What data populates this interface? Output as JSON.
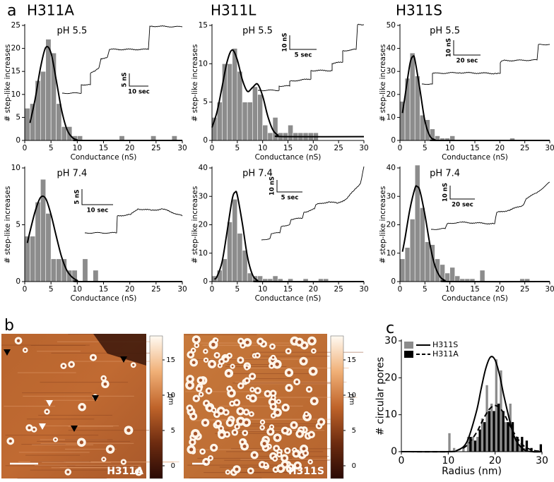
{
  "panel_labels": [
    "a",
    "b",
    "c"
  ],
  "column_titles": [
    "H311A",
    "H311L",
    "H311S"
  ],
  "chart_data": [
    {
      "type": "histogram",
      "annotation": "pH 5.5",
      "xlabel": "Conductance (nS)",
      "ylabel": "# step-like increases",
      "color": "#8c8c8c",
      "bins": [
        0,
        1,
        2,
        3,
        4,
        5,
        6,
        7,
        8,
        9,
        10,
        11,
        12,
        13,
        14,
        15,
        16,
        17,
        18,
        19,
        20,
        21,
        22,
        23,
        24,
        25,
        26,
        27,
        28,
        29,
        30
      ],
      "values": [
        7,
        8,
        13,
        15,
        22,
        19,
        8,
        3,
        3,
        1,
        1,
        0,
        0,
        0,
        0,
        0,
        0,
        0,
        1,
        0,
        0,
        0,
        0,
        0,
        1,
        0,
        0,
        0,
        1,
        0
      ],
      "xlim": [
        0,
        30
      ],
      "xticks": [
        0,
        5,
        10,
        15,
        20,
        25,
        30
      ],
      "ylim": [
        0,
        25
      ],
      "yticks": [
        0,
        5,
        10,
        15,
        20,
        25
      ],
      "fit": {
        "color": "#000000",
        "x": [
          1,
          2,
          3,
          4,
          5,
          6,
          7,
          8,
          9,
          10,
          11,
          30
        ],
        "values": [
          3.8,
          9.1,
          15.8,
          20.2,
          19.0,
          13.1,
          6.7,
          2.5,
          0.7,
          0.1,
          0,
          0
        ]
      },
      "inset": {
        "scale_y": "5 nS",
        "scale_x": "10 sec"
      }
    },
    {
      "type": "histogram",
      "annotation": "pH 5.5",
      "xlabel": "Conductance (nS)",
      "ylabel": "# step-like increases",
      "color": "#8c8c8c",
      "bins": [
        0,
        1,
        2,
        3,
        4,
        5,
        6,
        7,
        8,
        9,
        10,
        11,
        12,
        13,
        14,
        15,
        16,
        17,
        18,
        19,
        20,
        21,
        22,
        23,
        24,
        25,
        26,
        27,
        28,
        29,
        30
      ],
      "values": [
        3,
        5,
        10,
        10,
        12,
        9,
        5,
        5,
        7,
        6,
        2,
        1,
        3,
        1,
        1,
        2,
        1,
        1,
        1,
        1,
        1,
        0,
        0,
        0,
        0,
        0,
        0,
        0,
        0,
        0
      ],
      "xlim": [
        0,
        30
      ],
      "xticks": [
        0,
        5,
        10,
        15,
        20,
        25,
        30
      ],
      "ylim": [
        0,
        15
      ],
      "yticks": [
        0,
        5,
        10,
        15
      ],
      "fit": {
        "color": "#000000",
        "x": [
          0,
          1,
          2,
          3,
          4,
          5,
          6,
          7,
          8,
          9,
          10,
          11,
          12,
          13,
          14,
          30
        ],
        "values": [
          1.7,
          3.75,
          7.0,
          10.3,
          11.8,
          10.5,
          7.9,
          6.4,
          6.9,
          7.35,
          5.8,
          3.2,
          1.4,
          0.7,
          0.5,
          0.5
        ]
      },
      "inset": {
        "scale_y": "10 nS",
        "scale_x": "5 sec"
      }
    },
    {
      "type": "histogram",
      "annotation": "pH 5.5",
      "xlabel": "Conductance (nS)",
      "ylabel": "# step-like increases",
      "color": "#8c8c8c",
      "bins": [
        0,
        1,
        2,
        3,
        4,
        5,
        6,
        7,
        8,
        9,
        10,
        11,
        12,
        13,
        14,
        15,
        16,
        17,
        18,
        19,
        20,
        21,
        22,
        23,
        24,
        25,
        26,
        27,
        28,
        29,
        30
      ],
      "values": [
        17,
        27,
        38,
        28,
        11,
        9,
        5,
        2,
        1,
        1,
        2,
        0,
        0,
        0,
        0,
        0,
        0,
        0,
        0,
        0,
        0,
        0,
        1,
        0,
        0,
        0,
        0,
        0,
        0,
        0
      ],
      "xlim": [
        0,
        30
      ],
      "xticks": [
        0,
        5,
        10,
        15,
        20,
        25,
        30
      ],
      "ylim": [
        0,
        50
      ],
      "yticks": [
        0,
        10,
        20,
        30,
        40,
        50
      ],
      "fit": {
        "color": "#000000",
        "x": [
          0.5,
          1,
          2,
          2.6,
          3,
          4,
          5,
          6,
          7,
          8,
          30
        ],
        "values": [
          11.9,
          19.0,
          33.3,
          36.5,
          35.0,
          22.1,
          8.4,
          1.9,
          0.3,
          0,
          0
        ]
      },
      "inset": {
        "scale_y": "10 nS",
        "scale_x": "20 sec"
      }
    },
    {
      "type": "histogram",
      "annotation": "pH 7.4",
      "xlabel": "Conductance (nS)",
      "ylabel": "# step-like increases",
      "color": "#8c8c8c",
      "bins": [
        0,
        1,
        2,
        3,
        4,
        5,
        6,
        7,
        8,
        9,
        10,
        11,
        12,
        13,
        14,
        15,
        16,
        17,
        18,
        19,
        20,
        21,
        22,
        23,
        24,
        25,
        26,
        27,
        28,
        29,
        30
      ],
      "values": [
        4,
        4,
        7,
        9,
        6,
        2,
        2,
        2,
        1,
        1,
        0,
        2,
        0,
        1,
        0,
        0,
        0,
        0,
        0,
        0,
        0,
        0,
        0,
        0,
        0,
        0,
        0,
        0,
        0,
        0
      ],
      "xlim": [
        0,
        30
      ],
      "xticks": [
        0,
        5,
        10,
        15,
        20,
        25,
        30
      ],
      "ylim": [
        0,
        10
      ],
      "yticks": [
        0,
        5,
        10
      ],
      "fit": {
        "color": "#000000",
        "x": [
          0.5,
          1,
          2,
          3,
          4,
          5,
          6,
          7,
          8,
          9,
          10,
          11,
          30
        ],
        "values": [
          3.4,
          4.4,
          6.2,
          7.4,
          7.3,
          5.9,
          4.0,
          2.2,
          1.0,
          0.4,
          0.1,
          0,
          0
        ]
      },
      "inset": {
        "scale_y": "5 nS",
        "scale_x": "10 sec"
      }
    },
    {
      "type": "histogram",
      "annotation": "pH 7.4",
      "xlabel": "Conductance (nS)",
      "ylabel": "# step-like increases",
      "color": "#8c8c8c",
      "bins": [
        0,
        1,
        2,
        3,
        4,
        5,
        6,
        7,
        8,
        9,
        10,
        11,
        12,
        13,
        14,
        15,
        16,
        17,
        18,
        19,
        20,
        21,
        22,
        23,
        24,
        25,
        26,
        27,
        28,
        29,
        30
      ],
      "values": [
        2,
        4,
        8,
        21,
        29,
        17,
        11,
        3,
        2,
        2,
        1,
        1,
        2,
        1,
        0,
        1,
        0,
        0,
        1,
        0,
        0,
        1,
        1,
        0,
        0,
        0,
        0,
        0,
        0,
        0
      ],
      "xlim": [
        0,
        30
      ],
      "xticks": [
        0,
        5,
        10,
        15,
        20,
        25,
        30
      ],
      "ylim": [
        0,
        40
      ],
      "yticks": [
        0,
        10,
        20,
        30,
        40
      ],
      "fit": {
        "color": "#000000",
        "x": [
          0.5,
          1,
          2,
          3,
          4,
          4.6,
          5,
          6,
          7,
          8,
          9,
          10,
          30
        ],
        "values": [
          0.8,
          1.8,
          7.0,
          17.8,
          29.1,
          31.5,
          30.4,
          20.4,
          8.8,
          2.4,
          0.4,
          0,
          0
        ]
      },
      "inset": {
        "scale_y": "10 nS",
        "scale_x": "5 sec"
      }
    },
    {
      "type": "histogram",
      "annotation": "pH 7.4",
      "xlabel": "Conductance (nS)",
      "ylabel": "# step-like increases",
      "color": "#8c8c8c",
      "bins": [
        0,
        1,
        2,
        3,
        4,
        5,
        6,
        7,
        8,
        9,
        10,
        11,
        12,
        13,
        14,
        15,
        16,
        17,
        18,
        19,
        20,
        21,
        22,
        23,
        24,
        25,
        26,
        27,
        28,
        29,
        30
      ],
      "values": [
        8,
        12,
        22,
        41,
        26,
        14,
        13,
        8,
        6,
        3,
        5,
        2,
        1,
        1,
        1,
        0,
        4,
        0,
        0,
        0,
        0,
        0,
        0,
        0,
        1,
        1,
        0,
        0,
        0,
        0
      ],
      "xlim": [
        0,
        30
      ],
      "xticks": [
        0,
        5,
        10,
        15,
        20,
        25,
        30
      ],
      "ylim": [
        0,
        40
      ],
      "yticks": [
        0,
        10,
        20,
        30,
        40
      ],
      "fit": {
        "color": "#000000",
        "x": [
          0.5,
          1,
          2,
          3,
          3.4,
          4,
          5,
          6,
          7,
          8,
          9,
          10,
          30
        ],
        "values": [
          10.5,
          15.1,
          25.5,
          32.8,
          33.5,
          31.9,
          23.5,
          13.1,
          5.6,
          1.8,
          0.4,
          0,
          0
        ]
      },
      "inset": {
        "scale_y": "10 nS",
        "scale_x": "20 sec"
      }
    },
    {
      "type": "histogram",
      "xlabel": "Radius (nm)",
      "ylabel": "# circular pores",
      "bins": [
        10,
        11,
        12,
        13,
        14,
        15,
        16,
        17,
        18,
        19,
        20,
        21,
        22,
        23,
        24,
        25,
        26,
        27,
        28,
        29,
        30
      ],
      "series": [
        {
          "name": "H311S",
          "color": "#8c8c8c",
          "values": [
            5,
            1,
            0,
            1,
            4,
            4,
            4,
            9,
            18,
            13,
            25,
            22,
            8,
            13,
            4,
            2,
            1,
            0,
            0,
            0
          ],
          "fit": {
            "color": "#000000",
            "line_style": "solid",
            "x": [
              0,
              10,
              12,
              14,
              16,
              17,
              18,
              19,
              20,
              21,
              22,
              24,
              26,
              28,
              30
            ],
            "values": [
              0,
              0,
              0.4,
              2.7,
              10.8,
              16.9,
              22.5,
              25.6,
              24.8,
              20.5,
              14.4,
              4.4,
              0.7,
              0,
              0
            ]
          }
        },
        {
          "name": "H311A",
          "color": "#000000",
          "values": [
            0,
            0,
            0,
            0,
            4,
            3,
            6,
            8,
            11,
            11,
            13,
            11,
            8,
            8,
            4,
            4,
            3,
            1,
            0,
            2
          ],
          "fit": {
            "color": "#000000",
            "line_style": "dashed",
            "x": [
              0,
              10,
              12,
              14,
              16,
              17,
              18,
              19,
              20,
              21,
              22,
              24,
              26,
              28,
              30
            ],
            "values": [
              0,
              0,
              0.4,
              1.7,
              5.1,
              7.6,
              10.0,
              11.8,
              12.5,
              11.8,
              10.0,
              5.1,
              1.7,
              0.4,
              0.1
            ]
          }
        }
      ],
      "xlim": [
        0,
        30
      ],
      "xticks": [
        0,
        10,
        20,
        30
      ],
      "ylim": [
        0,
        30
      ],
      "yticks": [
        0,
        10,
        20,
        30
      ]
    }
  ],
  "afm_images": [
    {
      "label": "H311A",
      "colorbar": {
        "label": "nm",
        "ylim": [
          -1.8,
          18.4
        ],
        "yticks": [
          0,
          5,
          10,
          15
        ]
      }
    },
    {
      "label": "H311S",
      "colorbar": {
        "label": "nm",
        "ylim": [
          -1.8,
          18.4
        ],
        "yticks": [
          0,
          5,
          10,
          15
        ]
      }
    }
  ]
}
